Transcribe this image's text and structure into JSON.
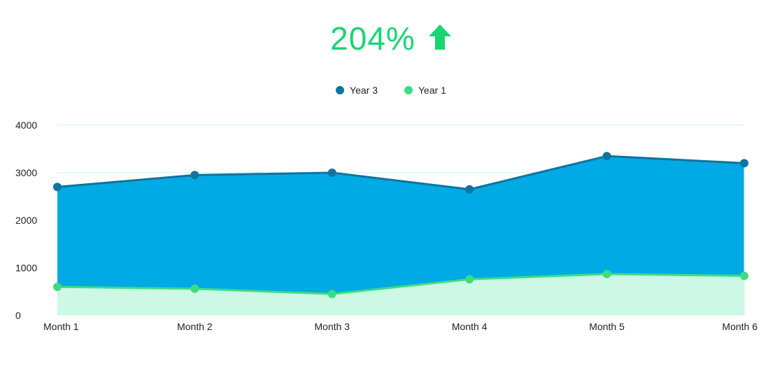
{
  "header": {
    "growth_value": "204%",
    "growth_icon": "up-arrow-icon",
    "growth_color": "#17d673"
  },
  "chart_data": {
    "type": "area",
    "categories": [
      "Month 1",
      "Month 2",
      "Month 3",
      "Month 4",
      "Month 5",
      "Month 6"
    ],
    "series": [
      {
        "name": "Year 3",
        "values": [
          2700,
          2950,
          3000,
          2650,
          3350,
          3200
        ],
        "line_color": "#0e74a0",
        "fill_color": "#00aae4"
      },
      {
        "name": "Year 1",
        "values": [
          600,
          560,
          450,
          760,
          870,
          830
        ],
        "line_color": "#3ddc84",
        "fill_color": "#cdf8e6"
      }
    ],
    "y_ticks": [
      "0",
      "1000",
      "2000",
      "3000",
      "4000"
    ],
    "ylim": [
      0,
      4000
    ],
    "grid": true,
    "legend_position": "top-center",
    "title": "",
    "xlabel": "",
    "ylabel": ""
  }
}
